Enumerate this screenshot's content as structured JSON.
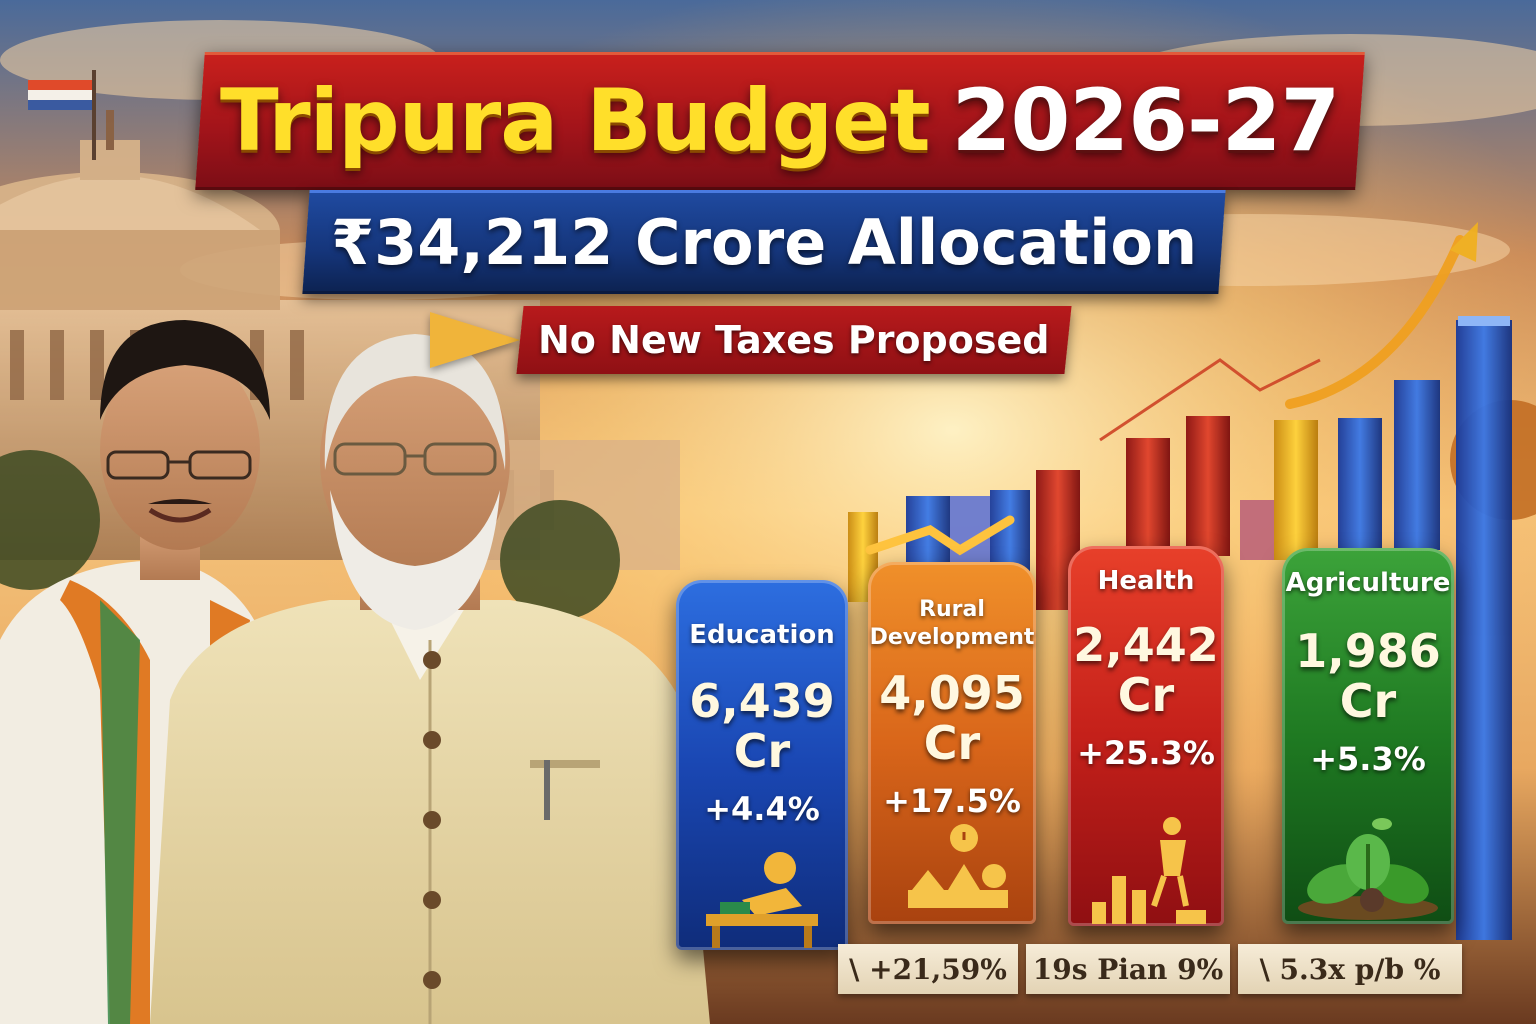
{
  "header": {
    "title_part1": "Tripura Budget",
    "title_part2": "2026-27",
    "allocation": "₹34,212 Crore Allocation",
    "no_tax": "No New Taxes Proposed"
  },
  "sectors": [
    {
      "label": "Education",
      "value": "6,439",
      "unit": "Cr",
      "change": "+4.4%",
      "icon": "student-desk-icon",
      "color": "#1a47b3"
    },
    {
      "label_line1": "Rural",
      "label_line2": "Development",
      "value": "4,095",
      "unit": "Cr",
      "change": "+17.5%",
      "icon": "village-icon",
      "color": "#d9661a"
    },
    {
      "label": "Health",
      "value": "2,442",
      "unit": "Cr",
      "change": "+25.3%",
      "icon": "health-growth-icon",
      "color": "#c4201a"
    },
    {
      "label": "Agriculture",
      "value": "1,986",
      "unit": "Cr",
      "change": "+5.3%",
      "icon": "plant-icon",
      "color": "#1f7a22"
    }
  ],
  "strip": [
    "\\ +21,59%",
    "19s Pian 9%",
    "\\ 5.3x p/b %"
  ]
}
